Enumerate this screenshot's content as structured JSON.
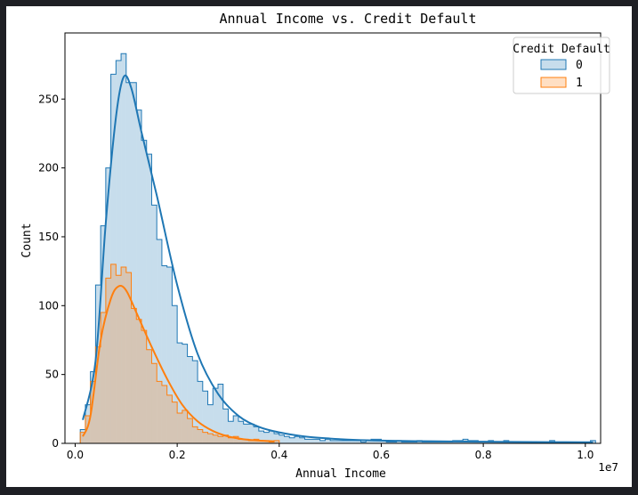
{
  "chart_data": {
    "type": "histogram",
    "title": "Annual Income vs. Credit Default",
    "xlabel": "Annual Income",
    "ylabel": "Count",
    "x_offset_label": "1e7",
    "xlim": [
      -0.02,
      1.03
    ],
    "ylim": [
      0,
      298
    ],
    "x_ticks": [
      0.0,
      0.2,
      0.4,
      0.6,
      0.8,
      1.0
    ],
    "x_tick_labels": [
      "0.0",
      "0.2",
      "0.4",
      "0.6",
      "0.8",
      "1.0"
    ],
    "y_ticks": [
      0,
      50,
      100,
      150,
      200,
      250
    ],
    "y_tick_labels": [
      "0",
      "50",
      "100",
      "150",
      "200",
      "250"
    ],
    "grid": false,
    "legend": {
      "title": "Credit Default",
      "placement": "top-right"
    },
    "series": [
      {
        "name": "0",
        "color": "#1f77b4",
        "fill": "#1f77b4",
        "bin_width": 0.01,
        "bins": [
          [
            0.015,
            10
          ],
          [
            0.025,
            28
          ],
          [
            0.035,
            52
          ],
          [
            0.045,
            115
          ],
          [
            0.055,
            158
          ],
          [
            0.065,
            200
          ],
          [
            0.075,
            268
          ],
          [
            0.085,
            278
          ],
          [
            0.095,
            283
          ],
          [
            0.105,
            262
          ],
          [
            0.115,
            262
          ],
          [
            0.125,
            242
          ],
          [
            0.135,
            220
          ],
          [
            0.145,
            210
          ],
          [
            0.155,
            173
          ],
          [
            0.165,
            148
          ],
          [
            0.175,
            129
          ],
          [
            0.185,
            128
          ],
          [
            0.195,
            100
          ],
          [
            0.205,
            73
          ],
          [
            0.215,
            72
          ],
          [
            0.225,
            63
          ],
          [
            0.235,
            60
          ],
          [
            0.245,
            45
          ],
          [
            0.255,
            38
          ],
          [
            0.265,
            28
          ],
          [
            0.275,
            40
          ],
          [
            0.285,
            43
          ],
          [
            0.295,
            25
          ],
          [
            0.305,
            16
          ],
          [
            0.315,
            20
          ],
          [
            0.325,
            16
          ],
          [
            0.335,
            14
          ],
          [
            0.345,
            14
          ],
          [
            0.355,
            12
          ],
          [
            0.365,
            9
          ],
          [
            0.375,
            8
          ],
          [
            0.385,
            9
          ],
          [
            0.395,
            7
          ],
          [
            0.405,
            6
          ],
          [
            0.415,
            5
          ],
          [
            0.425,
            4
          ],
          [
            0.435,
            5
          ],
          [
            0.445,
            4
          ],
          [
            0.455,
            3
          ],
          [
            0.465,
            3
          ],
          [
            0.475,
            3
          ],
          [
            0.485,
            2
          ],
          [
            0.495,
            3
          ],
          [
            0.505,
            2
          ],
          [
            0.515,
            2
          ],
          [
            0.525,
            2
          ],
          [
            0.535,
            2
          ],
          [
            0.545,
            2
          ],
          [
            0.555,
            2
          ],
          [
            0.565,
            1
          ],
          [
            0.575,
            2
          ],
          [
            0.585,
            3
          ],
          [
            0.595,
            3
          ],
          [
            0.605,
            2
          ],
          [
            0.615,
            1
          ],
          [
            0.625,
            1
          ],
          [
            0.635,
            2
          ],
          [
            0.645,
            1
          ],
          [
            0.655,
            1
          ],
          [
            0.665,
            1
          ],
          [
            0.675,
            2
          ],
          [
            0.685,
            1
          ],
          [
            0.695,
            1
          ],
          [
            0.705,
            1
          ],
          [
            0.715,
            1
          ],
          [
            0.725,
            1
          ],
          [
            0.735,
            1
          ],
          [
            0.745,
            2
          ],
          [
            0.755,
            2
          ],
          [
            0.765,
            3
          ],
          [
            0.775,
            2
          ],
          [
            0.785,
            2
          ],
          [
            0.795,
            1
          ],
          [
            0.805,
            1
          ],
          [
            0.815,
            2
          ],
          [
            0.825,
            1
          ],
          [
            0.835,
            1
          ],
          [
            0.845,
            2
          ],
          [
            0.855,
            1
          ],
          [
            0.865,
            1
          ],
          [
            0.875,
            1
          ],
          [
            0.885,
            1
          ],
          [
            0.895,
            1
          ],
          [
            0.905,
            1
          ],
          [
            0.915,
            1
          ],
          [
            0.925,
            1
          ],
          [
            0.935,
            2
          ],
          [
            0.945,
            1
          ],
          [
            0.955,
            1
          ],
          [
            0.965,
            1
          ],
          [
            0.975,
            1
          ],
          [
            0.985,
            1
          ],
          [
            0.995,
            1
          ],
          [
            1.005,
            1
          ],
          [
            1.015,
            2
          ]
        ],
        "kde": [
          [
            0.015,
            17
          ],
          [
            0.04,
            60
          ],
          [
            0.06,
            160
          ],
          [
            0.08,
            237
          ],
          [
            0.095,
            266
          ],
          [
            0.11,
            258
          ],
          [
            0.13,
            226
          ],
          [
            0.16,
            180
          ],
          [
            0.2,
            115
          ],
          [
            0.24,
            65
          ],
          [
            0.28,
            36
          ],
          [
            0.32,
            20
          ],
          [
            0.36,
            12
          ],
          [
            0.4,
            8
          ],
          [
            0.45,
            5
          ],
          [
            0.5,
            3.5
          ],
          [
            0.55,
            2.5
          ],
          [
            0.6,
            2
          ],
          [
            0.7,
            1.5
          ],
          [
            0.8,
            1.2
          ],
          [
            0.9,
            1
          ],
          [
            1.0,
            0.8
          ],
          [
            1.015,
            0.8
          ]
        ]
      },
      {
        "name": "1",
        "color": "#ff7f0e",
        "fill": "#ff7f0e",
        "bin_width": 0.01,
        "bins": [
          [
            0.015,
            8
          ],
          [
            0.025,
            20
          ],
          [
            0.035,
            45
          ],
          [
            0.045,
            70
          ],
          [
            0.055,
            95
          ],
          [
            0.065,
            120
          ],
          [
            0.075,
            130
          ],
          [
            0.085,
            122
          ],
          [
            0.095,
            128
          ],
          [
            0.105,
            124
          ],
          [
            0.115,
            98
          ],
          [
            0.125,
            90
          ],
          [
            0.135,
            82
          ],
          [
            0.145,
            68
          ],
          [
            0.155,
            58
          ],
          [
            0.165,
            45
          ],
          [
            0.175,
            42
          ],
          [
            0.185,
            35
          ],
          [
            0.195,
            30
          ],
          [
            0.205,
            22
          ],
          [
            0.215,
            24
          ],
          [
            0.225,
            18
          ],
          [
            0.235,
            12
          ],
          [
            0.245,
            10
          ],
          [
            0.255,
            8
          ],
          [
            0.265,
            7
          ],
          [
            0.275,
            6
          ],
          [
            0.285,
            5
          ],
          [
            0.295,
            6
          ],
          [
            0.305,
            4
          ],
          [
            0.315,
            5
          ],
          [
            0.325,
            3
          ],
          [
            0.335,
            3
          ],
          [
            0.345,
            2
          ],
          [
            0.355,
            3
          ],
          [
            0.365,
            2
          ],
          [
            0.375,
            2
          ],
          [
            0.385,
            1
          ],
          [
            0.395,
            2
          ]
        ],
        "kde": [
          [
            0.015,
            5
          ],
          [
            0.03,
            20
          ],
          [
            0.05,
            75
          ],
          [
            0.07,
            105
          ],
          [
            0.085,
            114
          ],
          [
            0.1,
            111
          ],
          [
            0.12,
            95
          ],
          [
            0.15,
            70
          ],
          [
            0.18,
            47
          ],
          [
            0.21,
            28
          ],
          [
            0.24,
            16
          ],
          [
            0.27,
            9
          ],
          [
            0.3,
            5
          ],
          [
            0.33,
            3
          ],
          [
            0.36,
            2
          ],
          [
            0.39,
            1.5
          ]
        ]
      }
    ]
  }
}
